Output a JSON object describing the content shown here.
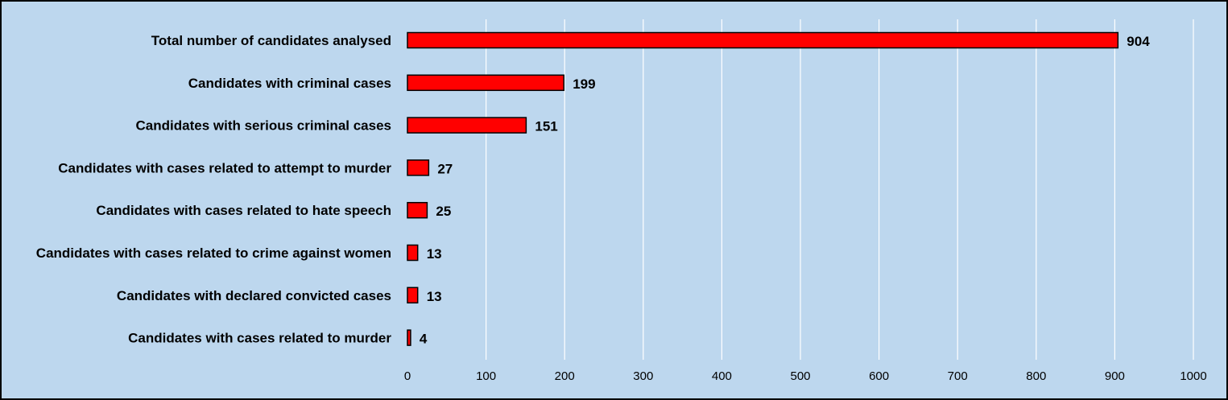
{
  "chart_data": {
    "type": "bar",
    "orientation": "horizontal",
    "categories": [
      "Total number of candidates analysed",
      "Candidates with criminal cases",
      "Candidates with serious criminal cases",
      "Candidates with cases related to attempt to murder",
      "Candidates with cases related to hate speech",
      "Candidates with cases related to crime against women",
      "Candidates with declared convicted cases",
      "Candidates with cases related to murder"
    ],
    "values": [
      904,
      199,
      151,
      27,
      25,
      13,
      13,
      4
    ],
    "xlim": [
      0,
      1000
    ],
    "xticks": [
      0,
      100,
      200,
      300,
      400,
      500,
      600,
      700,
      800,
      900,
      1000
    ],
    "grid": "vertical",
    "legend": "none",
    "title": "",
    "xlabel": "",
    "ylabel": "",
    "colors": {
      "background": "#bdd7ee",
      "bar": "#ff0000",
      "bar_border": "#000000",
      "grid": "#ffffff"
    }
  }
}
